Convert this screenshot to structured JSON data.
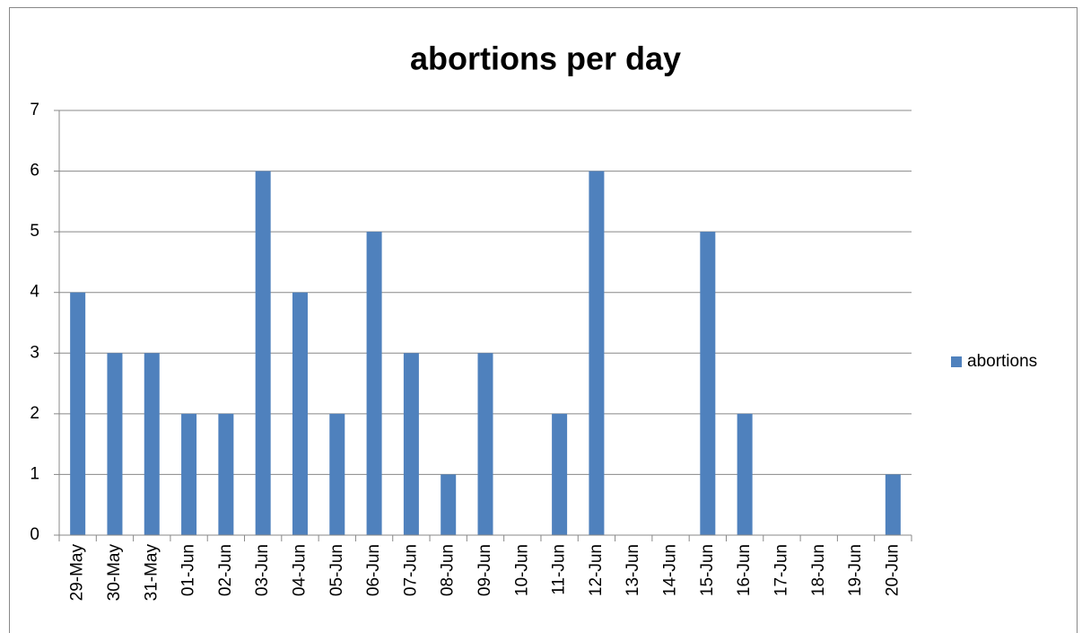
{
  "chart_data": {
    "type": "bar",
    "title": "abortions per day",
    "categories": [
      "29-May",
      "30-May",
      "31-May",
      "01-Jun",
      "02-Jun",
      "03-Jun",
      "04-Jun",
      "05-Jun",
      "06-Jun",
      "07-Jun",
      "08-Jun",
      "09-Jun",
      "10-Jun",
      "11-Jun",
      "12-Jun",
      "13-Jun",
      "14-Jun",
      "15-Jun",
      "16-Jun",
      "17-Jun",
      "18-Jun",
      "19-Jun",
      "20-Jun"
    ],
    "series": [
      {
        "name": "abortions",
        "color": "#4f81bd",
        "values": [
          4,
          3,
          3,
          2,
          2,
          6,
          4,
          2,
          5,
          3,
          1,
          3,
          0,
          2,
          6,
          0,
          0,
          5,
          2,
          0,
          0,
          0,
          1
        ]
      }
    ],
    "ylim": [
      0,
      7
    ],
    "yticks": [
      0,
      1,
      2,
      3,
      4,
      5,
      6,
      7
    ],
    "grid": true,
    "legend": "right"
  }
}
